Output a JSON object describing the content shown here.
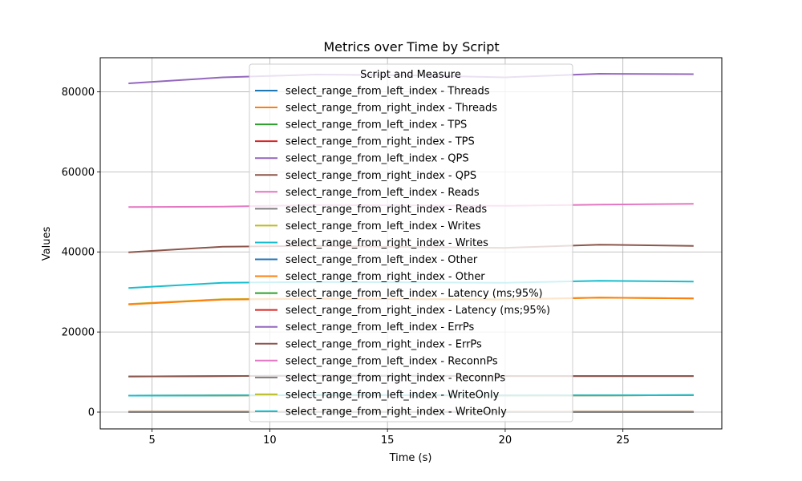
{
  "chart_data": {
    "type": "line",
    "title": "Metrics over Time by Script",
    "xlabel": "Time (s)",
    "ylabel": "Values",
    "xlim": [
      2.8,
      29.2
    ],
    "ylim": [
      -4200,
      88500
    ],
    "xticks": [
      5,
      10,
      15,
      20,
      25
    ],
    "xtick_labels": [
      "5",
      "10",
      "15",
      "20",
      "25"
    ],
    "yticks": [
      0,
      20000,
      40000,
      60000,
      80000
    ],
    "ytick_labels": [
      "0",
      "20000",
      "40000",
      "60000",
      "80000"
    ],
    "grid": true,
    "legend_title": "Script and Measure",
    "legend_location": "upper center",
    "x": [
      4,
      8,
      12,
      16,
      20,
      24,
      28
    ],
    "series": [
      {
        "name": "select_range_from_left_index - Threads",
        "color": "#1f77b4",
        "values": [
          64,
          64,
          64,
          64,
          64,
          64,
          64
        ]
      },
      {
        "name": "select_range_from_right_index - Threads",
        "color": "#ff7f0e",
        "values": [
          64,
          64,
          64,
          64,
          64,
          64,
          64
        ]
      },
      {
        "name": "select_range_from_left_index - TPS",
        "color": "#2ca02c",
        "values": [
          4100,
          4150,
          4250,
          4200,
          4150,
          4180,
          4220
        ]
      },
      {
        "name": "select_range_from_right_index - TPS",
        "color": "#d62728",
        "values": [
          4100,
          4150,
          4250,
          4200,
          4150,
          4180,
          4220
        ]
      },
      {
        "name": "select_range_from_left_index - QPS",
        "color": "#9467bd",
        "values": [
          82100,
          83600,
          84300,
          84100,
          83600,
          84500,
          84400
        ]
      },
      {
        "name": "select_range_from_right_index - QPS",
        "color": "#8c564b",
        "values": [
          39900,
          41300,
          41500,
          41200,
          41000,
          41800,
          41500
        ]
      },
      {
        "name": "select_range_from_left_index - Reads",
        "color": "#e377c2",
        "values": [
          51200,
          51300,
          51700,
          51600,
          51500,
          51800,
          52000
        ]
      },
      {
        "name": "select_range_from_right_index - Reads",
        "color": "#7f7f7f",
        "values": [
          0,
          0,
          0,
          0,
          0,
          0,
          0
        ]
      },
      {
        "name": "select_range_from_left_index - Writes",
        "color": "#bcbd22",
        "values": [
          27000,
          28200,
          28400,
          28300,
          28200,
          28600,
          28400
        ]
      },
      {
        "name": "select_range_from_right_index - Writes",
        "color": "#17becf",
        "values": [
          31000,
          32300,
          32500,
          32400,
          32300,
          32800,
          32600
        ]
      },
      {
        "name": "select_range_from_left_index - Other",
        "color": "#1f77b4",
        "values": [
          8900,
          9000,
          9100,
          9050,
          9000,
          9000,
          9000
        ]
      },
      {
        "name": "select_range_from_right_index - Other",
        "color": "#ff7f0e",
        "values": [
          26900,
          28100,
          28300,
          28200,
          28100,
          28600,
          28400
        ]
      },
      {
        "name": "select_range_from_left_index - Latency (ms;95%)",
        "color": "#2ca02c",
        "values": [
          30,
          30,
          30,
          30,
          30,
          30,
          30
        ]
      },
      {
        "name": "select_range_from_right_index - Latency (ms;95%)",
        "color": "#d62728",
        "values": [
          30,
          30,
          30,
          30,
          30,
          30,
          30
        ]
      },
      {
        "name": "select_range_from_left_index - ErrPs",
        "color": "#9467bd",
        "values": [
          0,
          0,
          0,
          0,
          0,
          0,
          0
        ]
      },
      {
        "name": "select_range_from_right_index - ErrPs",
        "color": "#8c564b",
        "values": [
          8900,
          9000,
          9100,
          9050,
          9000,
          9000,
          9000
        ]
      },
      {
        "name": "select_range_from_left_index - ReconnPs",
        "color": "#e377c2",
        "values": [
          0,
          0,
          0,
          0,
          0,
          0,
          0
        ]
      },
      {
        "name": "select_range_from_right_index - ReconnPs",
        "color": "#7f7f7f",
        "values": [
          0,
          0,
          0,
          0,
          0,
          0,
          0
        ]
      },
      {
        "name": "select_range_from_left_index - WriteOnly",
        "color": "#bcbd22",
        "values": [
          4100,
          4150,
          4250,
          4200,
          4150,
          4180,
          4220
        ]
      },
      {
        "name": "select_range_from_right_index - WriteOnly",
        "color": "#17becf",
        "values": [
          4100,
          4150,
          4250,
          4200,
          4150,
          4180,
          4220
        ]
      }
    ]
  }
}
